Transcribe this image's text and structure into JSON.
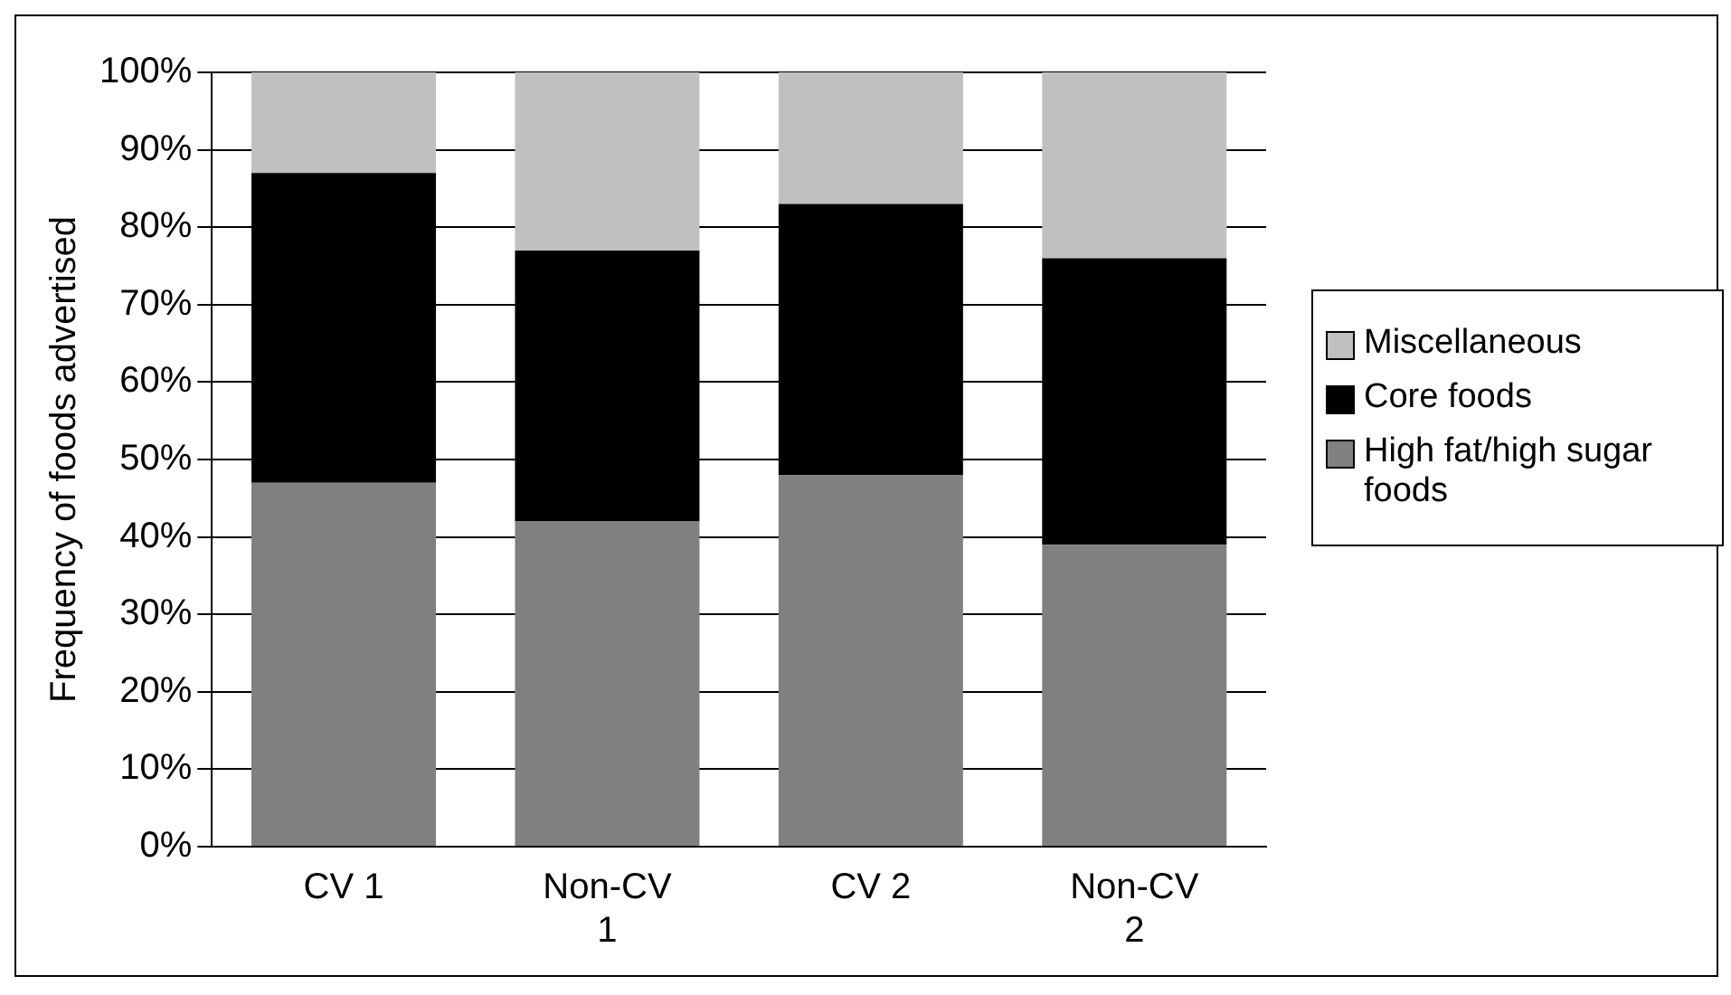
{
  "chart_data": {
    "type": "bar",
    "stacked": true,
    "ylabel": "Frequency of foods advertised",
    "categories": [
      "CV 1",
      "Non-CV 1",
      "CV 2",
      "Non-CV 2"
    ],
    "series": [
      {
        "name": "High fat/high sugar foods",
        "color": "#808080",
        "values": [
          47,
          42,
          48,
          39
        ]
      },
      {
        "name": "Core foods",
        "color": "#000000",
        "values": [
          40,
          35,
          35,
          37
        ]
      },
      {
        "name": "Miscellaneous",
        "color": "#c0c0c0",
        "values": [
          13,
          23,
          17,
          24
        ]
      }
    ],
    "ylim": [
      0,
      100
    ],
    "yticks": [
      {
        "value": 0,
        "label": "0%"
      },
      {
        "value": 10,
        "label": "10%"
      },
      {
        "value": 20,
        "label": "20%"
      },
      {
        "value": 30,
        "label": "30%"
      },
      {
        "value": 40,
        "label": "40%"
      },
      {
        "value": 50,
        "label": "50%"
      },
      {
        "value": 60,
        "label": "60%"
      },
      {
        "value": 70,
        "label": "70%"
      },
      {
        "value": 80,
        "label": "80%"
      },
      {
        "value": 90,
        "label": "90%"
      },
      {
        "value": 100,
        "label": "100%"
      }
    ],
    "grid": "y",
    "legend": "right"
  }
}
